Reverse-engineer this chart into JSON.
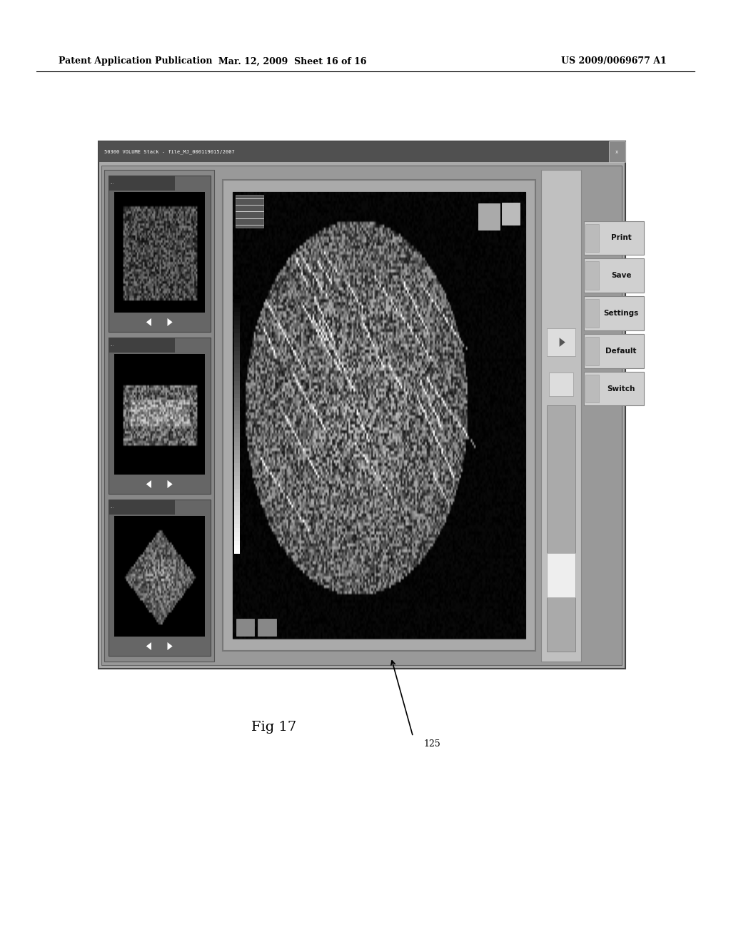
{
  "background_color": "#ffffff",
  "header_left": "Patent Application Publication",
  "header_mid": "Mar. 12, 2009  Sheet 16 of 16",
  "header_right": "US 2009/0069677 A1",
  "fig_label": "Fig 17",
  "annotation_label": "125",
  "screen_title": "50300 VOLUME Stack - file_MJ_000119015/2007",
  "button_labels": [
    "Switch",
    "Default",
    "Settings",
    "Save",
    "Print"
  ]
}
